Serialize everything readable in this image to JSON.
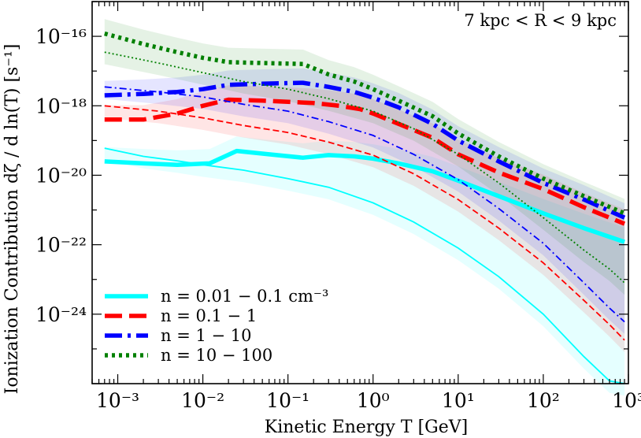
{
  "chart_data": {
    "type": "line",
    "title": "",
    "annotation": "7 kpc < R < 9 kpc",
    "xlabel": "Kinetic Energy T [GeV]",
    "ylabel": "Ionization Contribution dζ / d ln(T) [s⁻¹]",
    "xscale": "log",
    "yscale": "log",
    "xlim": [
      0.0005,
      1000
    ],
    "ylim": [
      1e-26,
      1e-15
    ],
    "x_ticks": [
      {
        "value": 0.001,
        "label": "10⁻³"
      },
      {
        "value": 0.01,
        "label": "10⁻²"
      },
      {
        "value": 0.1,
        "label": "10⁻¹"
      },
      {
        "value": 1,
        "label": "10⁰"
      },
      {
        "value": 10,
        "label": "10¹"
      },
      {
        "value": 100,
        "label": "10²"
      },
      {
        "value": 1000,
        "label": "10³"
      }
    ],
    "y_ticks": [
      {
        "value": 1e-16,
        "label": "10⁻¹⁶"
      },
      {
        "value": 1e-18,
        "label": "10⁻¹⁸"
      },
      {
        "value": 1e-20,
        "label": "10⁻²⁰"
      },
      {
        "value": 1e-22,
        "label": "10⁻²²"
      },
      {
        "value": 1e-24,
        "label": "10⁻²⁴"
      }
    ],
    "grid": false,
    "legend_position": "bottom-left",
    "series": [
      {
        "name": "n = 0.01 − 0.1 cm⁻³",
        "color": "#00ffff",
        "dash": "solid",
        "median": {
          "x": [
            0.0007,
            0.002,
            0.005,
            0.012,
            0.025,
            0.06,
            0.15,
            0.3,
            0.6,
            1,
            2,
            5,
            10,
            30,
            100,
            300,
            900
          ],
          "y": [
            2.5e-20,
            2.2e-20,
            2e-20,
            2.2e-20,
            5e-20,
            4e-20,
            3.2e-20,
            3.8e-20,
            3.5e-20,
            3e-20,
            2.2e-20,
            1.3e-20,
            7e-21,
            2.5e-21,
            8e-22,
            3e-22,
            1.2e-22
          ]
        },
        "lower": {
          "x": [
            0.0007,
            0.002,
            0.005,
            0.01,
            0.03,
            0.1,
            0.3,
            1,
            3,
            10,
            30,
            100,
            300,
            600,
            900
          ],
          "y": [
            6e-20,
            3.5e-20,
            2.6e-20,
            2e-20,
            1.4e-20,
            8e-21,
            4.5e-21,
            1.6e-21,
            4.5e-22,
            8e-23,
            1.2e-23,
            1e-24,
            6e-26,
            1.2e-26,
            1e-26
          ]
        }
      },
      {
        "name": "n = 0.1 − 1",
        "color": "#ff0000",
        "dash": "dashed",
        "median": {
          "x": [
            0.0007,
            0.002,
            0.005,
            0.01,
            0.02,
            0.05,
            0.1,
            0.2,
            0.4,
            0.7,
            1,
            2,
            5,
            10,
            30,
            100,
            300,
            900
          ],
          "y": [
            4e-19,
            4e-19,
            6e-19,
            1e-18,
            1.5e-18,
            1.4e-18,
            1.3e-18,
            1.2e-18,
            1e-18,
            8e-19,
            6e-19,
            3e-19,
            1.2e-19,
            4e-20,
            1.2e-20,
            4e-21,
            1.2e-21,
            4e-22
          ]
        },
        "lower": {
          "x": [
            0.0007,
            0.003,
            0.01,
            0.03,
            0.1,
            0.3,
            1,
            3,
            10,
            30,
            100,
            300,
            600,
            900
          ],
          "y": [
            1e-18,
            7e-19,
            4.5e-19,
            2.7e-19,
            1.7e-19,
            9e-20,
            3.8e-20,
            1.1e-20,
            2e-21,
            3e-22,
            3e-23,
            2.5e-24,
            5e-25,
            1.8e-25
          ]
        }
      },
      {
        "name": "n = 1 − 10",
        "color": "#0000ff",
        "dash": "dashdot",
        "median": {
          "x": [
            0.0007,
            0.002,
            0.005,
            0.01,
            0.02,
            0.05,
            0.1,
            0.15,
            0.3,
            0.6,
            1,
            2,
            5,
            10,
            30,
            100,
            300,
            900
          ],
          "y": [
            2e-18,
            2.2e-18,
            2.5e-18,
            3e-18,
            4e-18,
            4.3e-18,
            4.5e-18,
            4.6e-18,
            3.5e-18,
            2.5e-18,
            1.7e-18,
            9e-19,
            3e-19,
            1e-19,
            2.5e-20,
            6e-21,
            2e-21,
            6e-22
          ]
        },
        "lower": {
          "x": [
            0.0007,
            0.003,
            0.01,
            0.03,
            0.1,
            0.3,
            1,
            3,
            10,
            30,
            100,
            300,
            600,
            900
          ],
          "y": [
            3.5e-18,
            2.5e-18,
            1.8e-18,
            1.1e-18,
            7e-19,
            3.5e-19,
            1.4e-19,
            4e-20,
            7.5e-21,
            1.1e-21,
            1.1e-22,
            8e-24,
            1.5e-24,
            6e-25
          ]
        }
      },
      {
        "name": "n = 10 − 100",
        "color": "#008000",
        "dash": "dotted",
        "median": {
          "x": [
            0.0007,
            0.002,
            0.005,
            0.01,
            0.02,
            0.05,
            0.15,
            0.3,
            0.6,
            1,
            2,
            5,
            10,
            30,
            100,
            300,
            900
          ],
          "y": [
            1.2e-16,
            6e-17,
            3.5e-17,
            2.4e-17,
            1.8e-17,
            1.7e-17,
            1.6e-17,
            8e-18,
            5e-18,
            3e-18,
            1.4e-18,
            5e-19,
            1.6e-19,
            3.5e-20,
            8e-21,
            2.5e-21,
            8e-22
          ]
        },
        "lower": {
          "x": [
            0.0007,
            0.003,
            0.01,
            0.03,
            0.1,
            0.3,
            1,
            3,
            10,
            30,
            100,
            300,
            600,
            900
          ],
          "y": [
            3.5e-17,
            1.7e-17,
            9e-18,
            5e-18,
            3e-18,
            1.6e-18,
            7e-19,
            2.2e-19,
            4e-20,
            6e-21,
            6e-22,
            7e-23,
            2e-23,
            8e-24
          ]
        }
      }
    ]
  }
}
